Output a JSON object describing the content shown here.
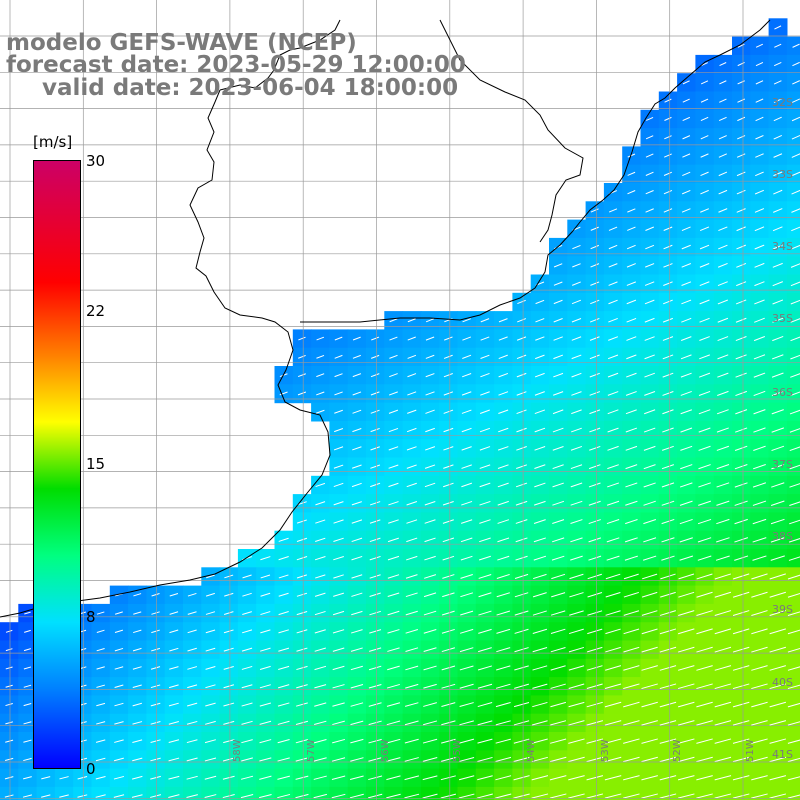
{
  "title": {
    "line1": "modelo GEFS-WAVE (NCEP)",
    "line2": "forecast date: 2023-05-29 12:00:00",
    "line3": "valid date: 2023-06-04 18:00:00"
  },
  "colorbar": {
    "unit": "[m/s]",
    "ticks": [
      {
        "label": "30",
        "value": 30
      },
      {
        "label": "22",
        "value": 22
      },
      {
        "label": "15",
        "value": 15
      },
      {
        "label": "8",
        "value": 8
      },
      {
        "label": "0",
        "value": 0
      }
    ],
    "range": [
      0,
      30
    ],
    "colors": [
      "#0000ff",
      "#0080ff",
      "#00e0ff",
      "#00ff80",
      "#00dd00",
      "#ffff00",
      "#ff8000",
      "#ff0000",
      "#cc0066"
    ]
  },
  "lat_labels": [
    "32S",
    "33S",
    "34S",
    "35S",
    "36S",
    "37S",
    "38S",
    "39S",
    "40S",
    "41S"
  ],
  "lon_labels": [
    "58W",
    "57W",
    "56W",
    "55W",
    "54W",
    "53W",
    "52W",
    "51W"
  ],
  "colors": {
    "land": "#ffffff",
    "coastline": "#000000",
    "grid": "#9a9a9a",
    "arrows": "#ffffff",
    "title_text": "#7a7a7a"
  }
}
